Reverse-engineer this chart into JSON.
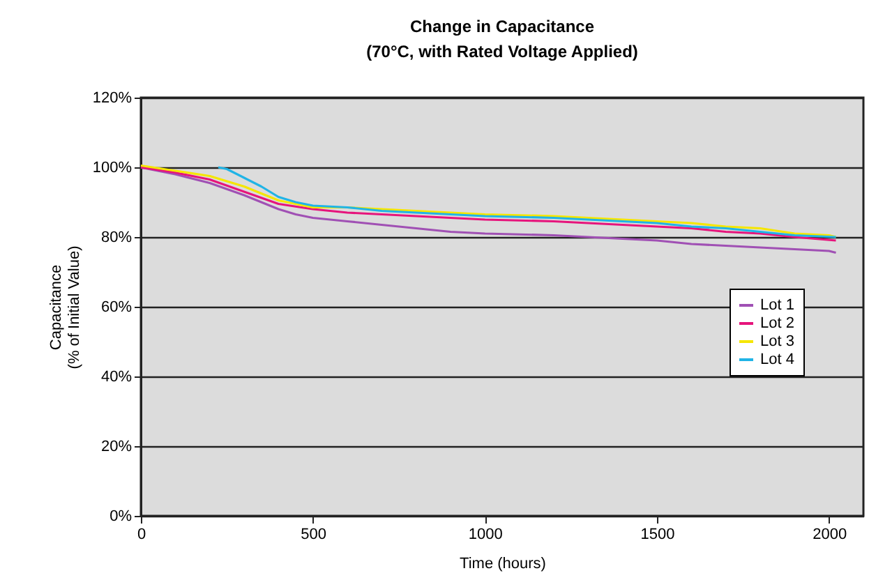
{
  "chart_data": {
    "type": "line",
    "title": "Change in Capacitance\n(70°C, with Rated Voltage Applied)",
    "xlabel": "Time (hours)",
    "ylabel": "Capacitance\n(% of Initial Value)",
    "xlim": [
      0,
      2100
    ],
    "xticks": [
      0,
      500,
      1000,
      1500,
      2000
    ],
    "ylim": [
      0,
      120
    ],
    "yticks": [
      {
        "value": 0,
        "label": "0%"
      },
      {
        "value": 20,
        "label": "20%"
      },
      {
        "value": 40,
        "label": "40%"
      },
      {
        "value": 60,
        "label": "60%"
      },
      {
        "value": 80,
        "label": "80%"
      },
      {
        "value": 100,
        "label": "100%"
      },
      {
        "value": 120,
        "label": "120%"
      }
    ],
    "grid": "y",
    "legend": "right",
    "line_style": "solid",
    "series": [
      {
        "name": "Lot 1",
        "color": "#a050b4",
        "x": [
          0,
          100,
          200,
          300,
          400,
          450,
          500,
          600,
          700,
          800,
          900,
          1000,
          1200,
          1300,
          1400,
          1500,
          1600,
          1700,
          1800,
          1900,
          2000,
          2020
        ],
        "values": [
          100,
          98,
          95.5,
          92,
          88,
          86.5,
          85.5,
          84.5,
          83.5,
          82.5,
          81.5,
          81,
          80.5,
          80,
          79.5,
          79,
          78,
          77.5,
          77,
          76.5,
          76,
          75.5
        ]
      },
      {
        "name": "Lot 2",
        "color": "#e6147c",
        "x": [
          0,
          100,
          200,
          300,
          400,
          500,
          600,
          700,
          800,
          900,
          1000,
          1200,
          1300,
          1500,
          1600,
          1700,
          1800,
          1900,
          2020
        ],
        "values": [
          100,
          98.5,
          96.5,
          93,
          89.5,
          88,
          87,
          86.5,
          86,
          85.5,
          85,
          84.5,
          84,
          83,
          82.5,
          81.5,
          81,
          80,
          79
        ]
      },
      {
        "name": "Lot 3",
        "color": "#f5e600",
        "x": [
          0,
          100,
          200,
          300,
          400,
          500,
          600,
          700,
          800,
          900,
          1000,
          1200,
          1300,
          1500,
          1600,
          1700,
          1800,
          1900,
          2000,
          2020
        ],
        "values": [
          100.5,
          99,
          97.5,
          94.5,
          90.5,
          88.5,
          88.5,
          88,
          87.5,
          87,
          86.5,
          86,
          85.5,
          84.5,
          84,
          83,
          82.5,
          81,
          80.5,
          80
        ]
      },
      {
        "name": "Lot 4",
        "color": "#20b4e6",
        "x": [
          225,
          250,
          300,
          350,
          400,
          450,
          500,
          600,
          700,
          800,
          900,
          1000,
          1200,
          1300,
          1500,
          1600,
          1700,
          1800,
          1900,
          2020
        ],
        "values": [
          100,
          99.5,
          97,
          94.5,
          91.5,
          90,
          89,
          88.5,
          87.5,
          87,
          86.5,
          86,
          85.5,
          85,
          84,
          83,
          82.5,
          81.5,
          80.5,
          80
        ]
      }
    ]
  }
}
